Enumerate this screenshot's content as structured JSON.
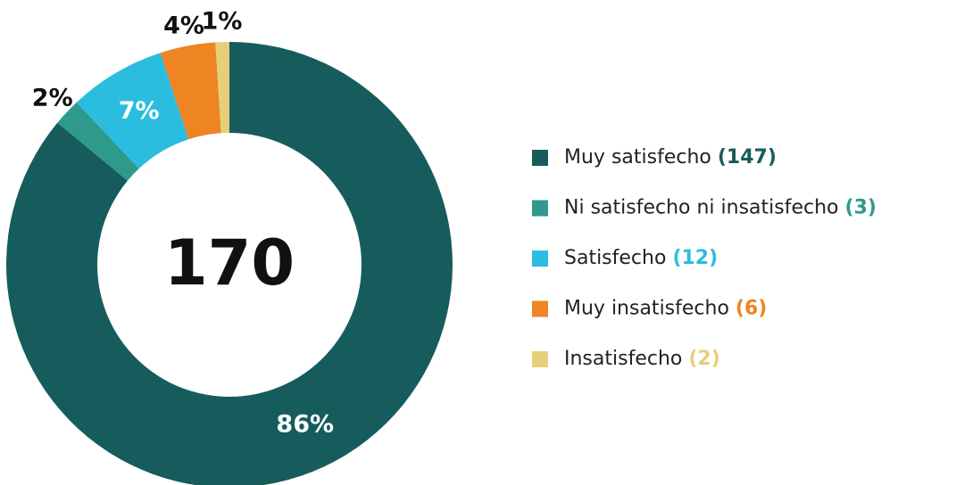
{
  "chart_data": {
    "type": "donut",
    "categories": [
      "Muy satisfecho",
      "Ni satisfecho ni insatisfecho",
      "Satisfecho",
      "Muy insatisfecho",
      "Insatisfecho"
    ],
    "values": [
      86,
      2,
      7,
      4,
      1
    ],
    "value_labels": [
      "86%",
      "2%",
      "7%",
      "4%",
      "1%"
    ],
    "counts": [
      147,
      3,
      12,
      6,
      2
    ],
    "count_labels": [
      "(147)",
      "(3)",
      "(12)",
      "(6)",
      "(2)"
    ],
    "colors": [
      "#175c5c",
      "#2e9a8c",
      "#2bbde0",
      "#ee8422",
      "#e6cf7a"
    ],
    "total": 170,
    "legend": "right"
  }
}
